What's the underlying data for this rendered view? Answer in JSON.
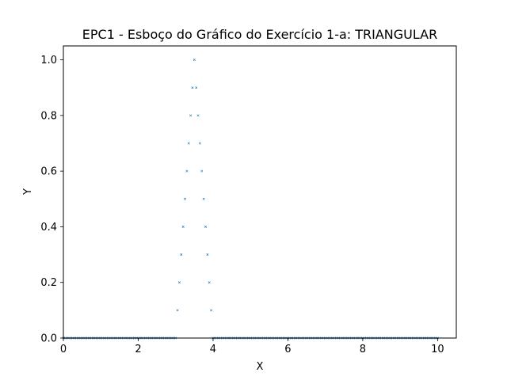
{
  "chart_data": {
    "type": "scatter",
    "title": "EPC1 - Esboço do Gráfico do Exercício 1-a: TRIANGULAR",
    "xlabel": "X",
    "ylabel": "Y",
    "xlim": [
      0,
      10.5
    ],
    "ylim": [
      0,
      1.05
    ],
    "xticks": [
      "0",
      "2",
      "4",
      "6",
      "8",
      "10"
    ],
    "yticks": [
      "0.0",
      "0.2",
      "0.4",
      "0.6",
      "0.8",
      "1.0"
    ],
    "grid": false,
    "marker_color": "#1f77b4",
    "series": [
      {
        "shape": "triangular",
        "x_range": [
          0,
          10
        ],
        "step": 0.05,
        "a": 3,
        "m": 3.5,
        "b": 4
      }
    ]
  }
}
